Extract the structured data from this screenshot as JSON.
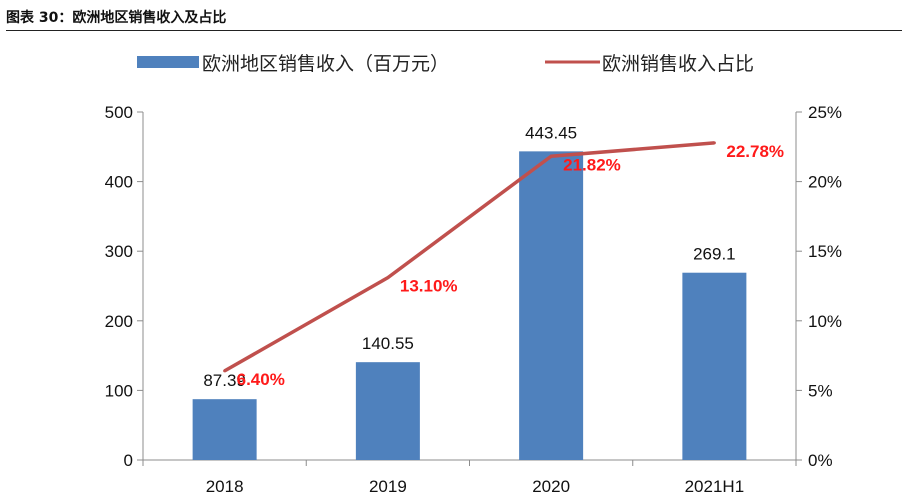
{
  "figure": {
    "title": "图表 30：欧洲地区销售收入及占比"
  },
  "chart_data": {
    "type": "bar+line",
    "categories": [
      "2018",
      "2019",
      "2020",
      "2021H1"
    ],
    "series": [
      {
        "name": "欧洲地区销售收入（百万元）",
        "type": "bar",
        "axis": "left",
        "values": [
          87.39,
          140.55,
          443.45,
          269.1
        ],
        "labels": [
          "87.39",
          "140.55",
          "443.45",
          "269.1"
        ],
        "color": "#4f81bd"
      },
      {
        "name": "欧洲销售收入占比",
        "type": "line",
        "axis": "right",
        "values": [
          6.4,
          13.1,
          21.82,
          22.78
        ],
        "labels": [
          "6.40%",
          "13.10%",
          "21.82%",
          "22.78%"
        ],
        "color": "#c0504d",
        "label_color": "#ff1a1a"
      }
    ],
    "y_left": {
      "lim": [
        0,
        500
      ],
      "ticks": [
        "0",
        "100",
        "200",
        "300",
        "400",
        "500"
      ]
    },
    "y_right": {
      "lim": [
        0,
        25
      ],
      "ticks": [
        "0%",
        "5%",
        "10%",
        "15%",
        "20%",
        "25%"
      ]
    },
    "grid": false,
    "legend": "top"
  }
}
